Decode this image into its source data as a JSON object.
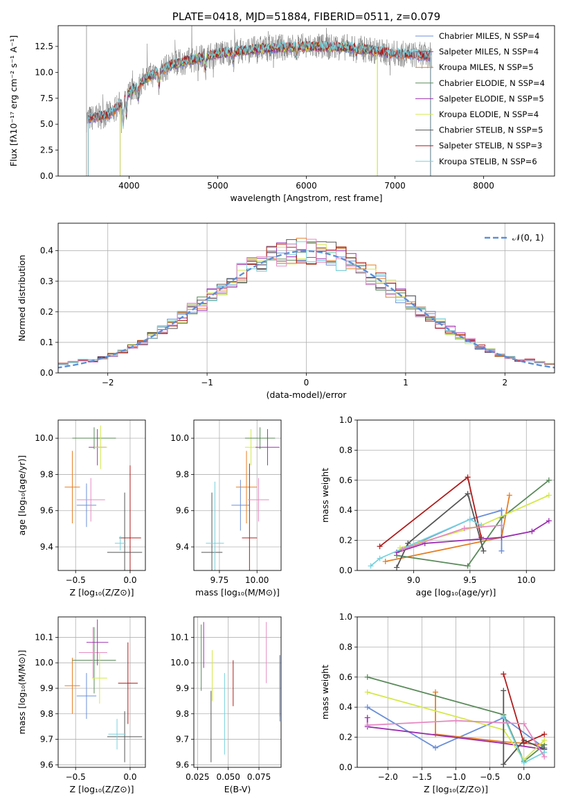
{
  "colors": {
    "c_miles": "#6a8fd8",
    "s_miles": "#9b4dad",
    "k_miles": "#e67e22",
    "c_elodie": "#5a8a5a",
    "s_elodie": "#9b30b0",
    "k_elodie": "#d4e84a",
    "c_stelib": "#555555",
    "s_stelib": "#b01c1c",
    "k_stelib": "#76d2de",
    "pink": "#e58ac2",
    "gauss": "#5a8fd8"
  },
  "chart_data": [
    {
      "type": "line",
      "id": "spectrum",
      "title": "PLATE=0418, MJD=51884, FIBERID=0511, z=0.079",
      "xlabel": "wavelength [Angstrom, rest frame]",
      "ylabel": "Flux [fλ10⁻¹⁷ erg cm⁻² s⁻¹ A⁻¹]",
      "xlim": [
        3200,
        8800
      ],
      "ylim": [
        0,
        14.5
      ],
      "xticks": [
        "4000",
        "5000",
        "6000",
        "7000",
        "8000"
      ],
      "yticks": [
        "0.0",
        "2.5",
        "5.0",
        "7.5",
        "10.0",
        "12.5"
      ],
      "grid": false,
      "legend": "right",
      "data_anchor_x": [
        3520,
        3800,
        4000,
        4200,
        4500,
        5000,
        5500,
        6000,
        6500,
        7000,
        7400
      ],
      "data_anchor_y": [
        5.5,
        6.0,
        8.0,
        9.5,
        10.8,
        11.8,
        12.3,
        12.5,
        12.4,
        11.8,
        11.6
      ],
      "legend_entries": [
        "Chabrier MILES, N_SSP=4",
        "Salpeter MILES, N_SSP=4",
        "Kroupa MILES, N_SSP=5",
        "Chabrier ELODIE, N_SSP=4",
        "Salpeter ELODIE, N_SSP=5",
        "Kroupa ELODIE, N_SSP=4",
        "Chabrier STELIB, N_SSP=5",
        "Salpeter STELIB, N_SSP=3",
        "Kroupa STELIB, N_SSP=6"
      ]
    },
    {
      "type": "bar",
      "id": "residuals",
      "xlabel": "(data-model)/error",
      "ylabel": "Normed distribution",
      "xlim": [
        -2.5,
        2.5
      ],
      "ylim": [
        0,
        0.49
      ],
      "xticks": [
        "−2",
        "−1",
        "0",
        "1",
        "2"
      ],
      "yticks": [
        "0.0",
        "0.1",
        "0.2",
        "0.3",
        "0.4"
      ],
      "grid": true,
      "legend": "top-right",
      "legend_label": "𝒩(0, 1)"
    },
    {
      "type": "scatter",
      "id": "z_age",
      "xlabel": "Z [log₁₀(Z/Z⊙)]",
      "ylabel": "age  [log₁₀(age/yr)]",
      "xlim": [
        -0.66,
        0.14
      ],
      "ylim": [
        9.27,
        10.1
      ],
      "xticks": [
        "−0.5",
        "0.0"
      ],
      "yticks": [
        "9.4",
        "9.6",
        "9.8",
        "10.0"
      ],
      "grid": true
    },
    {
      "type": "scatter",
      "id": "mass_age",
      "xlabel": "mass [log₁₀(M/M⊙)]",
      "xlim": [
        9.58,
        10.16
      ],
      "ylim": [
        9.27,
        10.1
      ],
      "xticks": [
        "9.75",
        "10.00"
      ],
      "yticks": [
        "9.4",
        "9.6",
        "9.8",
        "10.0"
      ],
      "grid": true
    },
    {
      "type": "line",
      "id": "age_weight",
      "xlabel": "age  [log₁₀(age/yr)]",
      "ylabel": "mass weight",
      "xlim": [
        8.5,
        10.25
      ],
      "ylim": [
        0,
        1.0
      ],
      "xticks": [
        "9.0",
        "9.5",
        "10.0"
      ],
      "yticks": [
        "0.0",
        "0.2",
        "0.4",
        "0.6",
        "0.8",
        "1.0"
      ],
      "grid": true
    },
    {
      "type": "scatter",
      "id": "z_mass",
      "xlabel": "Z [log₁₀(Z/Z⊙)]",
      "ylabel": "mass [log₁₀(M/M⊙)]",
      "xlim": [
        -0.66,
        0.14
      ],
      "ylim": [
        9.59,
        10.18
      ],
      "xticks": [
        "−0.5",
        "0.0"
      ],
      "yticks": [
        "9.6",
        "9.7",
        "9.8",
        "9.9",
        "10.0",
        "10.1"
      ],
      "grid": true
    },
    {
      "type": "scatter",
      "id": "ebv_mass",
      "xlabel": "E(B-V)",
      "xlim": [
        0.022,
        0.093
      ],
      "ylim": [
        9.59,
        10.18
      ],
      "xticks": [
        "0.025",
        "0.050",
        "0.075"
      ],
      "yticks": [
        "9.6",
        "9.7",
        "9.8",
        "9.9",
        "10.0",
        "10.1"
      ],
      "grid": true
    },
    {
      "type": "line",
      "id": "z_weight",
      "xlabel": "Z [log₁₀(Z/Z⊙)]",
      "ylabel": "mass weight",
      "xlim": [
        -2.45,
        0.45
      ],
      "ylim": [
        0,
        1.0
      ],
      "xticks": [
        "−2.0",
        "−1.5",
        "−1.0",
        "−0.5",
        "0.0"
      ],
      "yticks": [
        "0.0",
        "0.2",
        "0.4",
        "0.6",
        "0.8",
        "1.0"
      ],
      "grid": true
    }
  ]
}
